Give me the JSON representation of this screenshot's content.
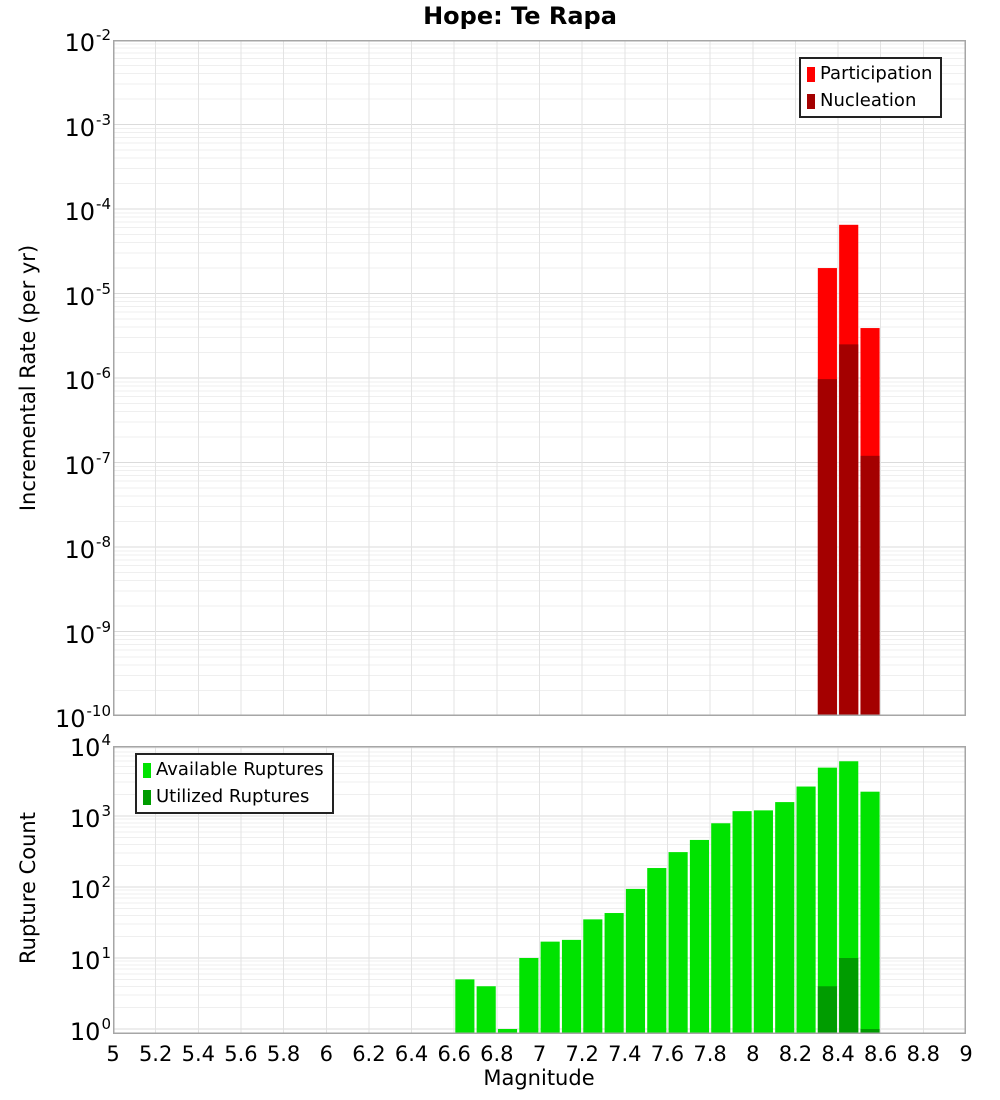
{
  "title": "Hope: Te Rapa",
  "chart_data": [
    {
      "type": "bar",
      "panel": "top",
      "title": "Hope: Te Rapa",
      "ylabel": "Incremental Rate (per yr)",
      "xlabel": "",
      "yscale": "log",
      "ylim": [
        1e-10,
        0.01
      ],
      "xlim": [
        5,
        9
      ],
      "y_tick_exponents": [
        -2,
        -3,
        -4,
        -5,
        -6,
        -7,
        -8,
        -9,
        -10
      ],
      "x_tick_labels_shown": false,
      "grid": true,
      "bin_width": 0.1,
      "categories": [
        8.3,
        8.4,
        8.5
      ],
      "series": [
        {
          "name": "Participation",
          "color": "#FF0000",
          "values": [
            2e-05,
            6.5e-05,
            3.9e-06
          ]
        },
        {
          "name": "Nucleation",
          "color": "#A40000",
          "values": [
            9.7e-07,
            2.5e-06,
            1.2e-07
          ]
        }
      ],
      "legend_position": "top-right"
    },
    {
      "type": "bar",
      "panel": "bottom",
      "title": "",
      "ylabel": "Rupture Count",
      "xlabel": "Magnitude",
      "yscale": "log",
      "ylim": [
        1,
        10000
      ],
      "xlim": [
        5,
        9
      ],
      "y_tick_exponents": [
        4,
        3,
        2,
        1,
        0
      ],
      "x_tick_labels": [
        "5",
        "5.2",
        "5.4",
        "5.6",
        "5.8",
        "6",
        "6.2",
        "6.4",
        "6.6",
        "6.8",
        "7",
        "7.2",
        "7.4",
        "7.6",
        "7.8",
        "8",
        "8.2",
        "8.4",
        "8.6",
        "8.8",
        "9"
      ],
      "grid": true,
      "bin_width": 0.1,
      "categories": [
        6.6,
        6.7,
        6.8,
        6.9,
        7.0,
        7.1,
        7.2,
        7.3,
        7.4,
        7.5,
        7.6,
        7.7,
        7.8,
        7.9,
        8.0,
        8.1,
        8.2,
        8.3,
        8.4,
        8.5
      ],
      "series": [
        {
          "name": "Available Ruptures",
          "color": "#00E300",
          "values": [
            5,
            4,
            1,
            10,
            17,
            18,
            35,
            43,
            94,
            185,
            310,
            460,
            790,
            1170,
            1200,
            1570,
            2600,
            4800,
            5900,
            2200
          ]
        },
        {
          "name": "Utilized Ruptures",
          "color": "#009C00",
          "values": [
            0,
            0,
            0,
            0,
            0,
            0,
            0,
            0,
            0,
            0,
            0,
            0,
            0,
            0,
            0,
            0,
            0,
            4,
            10,
            1
          ]
        }
      ],
      "legend_position": "top-left"
    }
  ]
}
